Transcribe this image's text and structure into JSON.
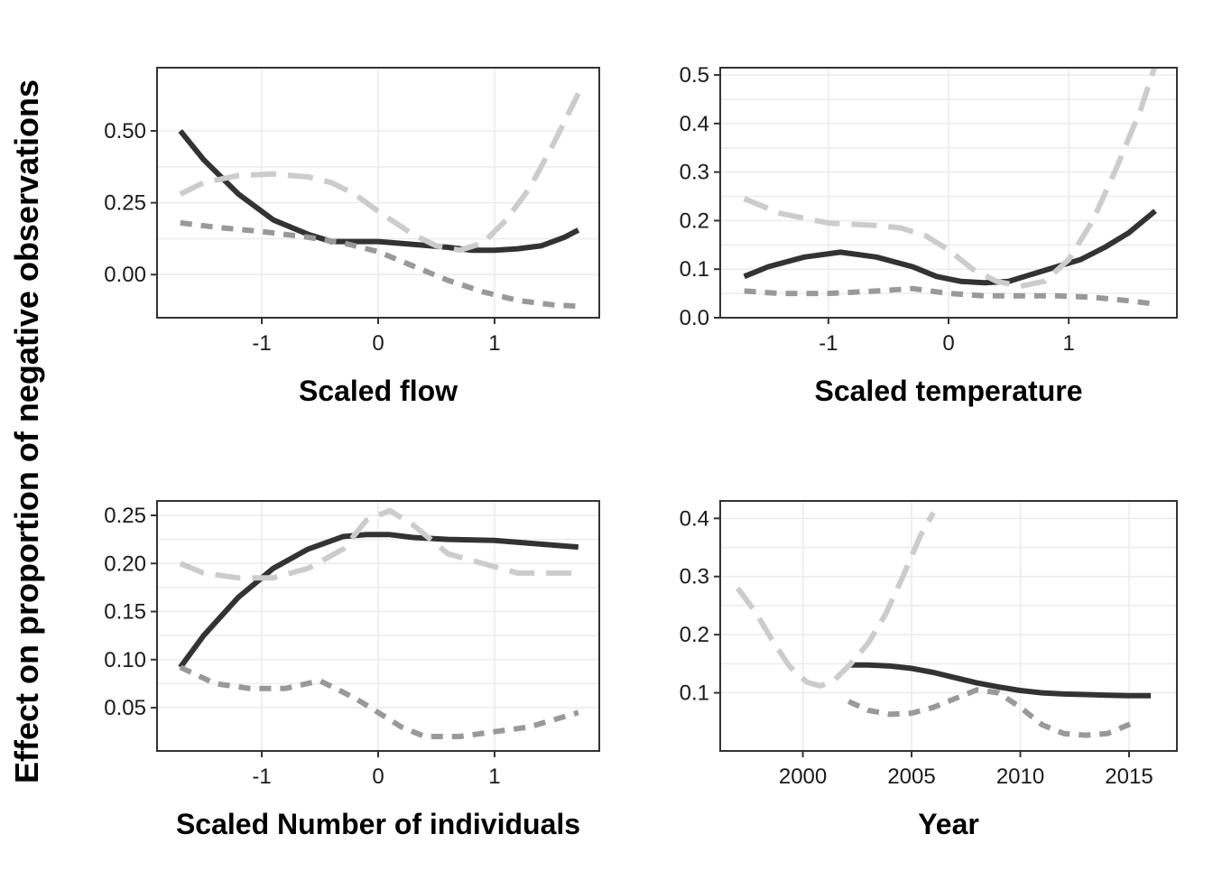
{
  "ylabel": "Effect on proportion of negative observations",
  "styles": {
    "series_a": {
      "color": "#333333",
      "dash": "solid"
    },
    "series_b": {
      "color": "#999999",
      "dash": "short-dash"
    },
    "series_c": {
      "color": "#cccccc",
      "dash": "long-dash"
    }
  },
  "chart_data": [
    {
      "type": "line",
      "xlabel": "Scaled flow",
      "xlim": [
        -1.9,
        1.9
      ],
      "ylim": [
        -0.15,
        0.72
      ],
      "xticks": [
        {
          "v": -1,
          "label": "-1"
        },
        {
          "v": 0,
          "label": "0"
        },
        {
          "v": 1,
          "label": "1"
        }
      ],
      "yticks": [
        {
          "v": 0,
          "label": "0.00"
        },
        {
          "v": 0.25,
          "label": "0.25"
        },
        {
          "v": 0.5,
          "label": "0.50"
        }
      ],
      "series": [
        {
          "style": "series_a",
          "x": [
            -1.7,
            -1.5,
            -1.2,
            -0.9,
            -0.6,
            -0.4,
            -0.2,
            0,
            0.3,
            0.6,
            0.8,
            1.0,
            1.2,
            1.4,
            1.6,
            1.72
          ],
          "y": [
            0.5,
            0.4,
            0.28,
            0.19,
            0.14,
            0.115,
            0.115,
            0.115,
            0.105,
            0.095,
            0.085,
            0.085,
            0.09,
            0.1,
            0.13,
            0.155
          ]
        },
        {
          "style": "series_b",
          "x": [
            -1.7,
            -1.4,
            -1.0,
            -0.6,
            -0.3,
            0,
            0.3,
            0.6,
            0.9,
            1.2,
            1.5,
            1.72
          ],
          "y": [
            0.18,
            0.165,
            0.15,
            0.13,
            0.11,
            0.08,
            0.03,
            -0.02,
            -0.06,
            -0.09,
            -0.105,
            -0.11
          ]
        },
        {
          "style": "series_c",
          "x": [
            -1.7,
            -1.5,
            -1.2,
            -0.9,
            -0.6,
            -0.4,
            -0.2,
            0,
            0.3,
            0.5,
            0.7,
            0.9,
            1.1,
            1.3,
            1.5,
            1.72
          ],
          "y": [
            0.28,
            0.32,
            0.345,
            0.35,
            0.34,
            0.32,
            0.28,
            0.22,
            0.14,
            0.1,
            0.085,
            0.11,
            0.19,
            0.3,
            0.45,
            0.63
          ]
        }
      ]
    },
    {
      "type": "line",
      "xlabel": "Scaled temperature",
      "xlim": [
        -1.9,
        1.9
      ],
      "ylim": [
        0,
        0.515
      ],
      "xticks": [
        {
          "v": -1,
          "label": "-1"
        },
        {
          "v": 0,
          "label": "0"
        },
        {
          "v": 1,
          "label": "1"
        }
      ],
      "yticks": [
        {
          "v": 0,
          "label": "0.0"
        },
        {
          "v": 0.1,
          "label": "0.1"
        },
        {
          "v": 0.2,
          "label": "0.2"
        },
        {
          "v": 0.3,
          "label": "0.3"
        },
        {
          "v": 0.4,
          "label": "0.4"
        },
        {
          "v": 0.5,
          "label": "0.5"
        }
      ],
      "series": [
        {
          "style": "series_a",
          "x": [
            -1.7,
            -1.5,
            -1.2,
            -0.9,
            -0.6,
            -0.3,
            -0.1,
            0.1,
            0.3,
            0.5,
            0.7,
            0.9,
            1.1,
            1.3,
            1.5,
            1.72
          ],
          "y": [
            0.085,
            0.105,
            0.125,
            0.135,
            0.125,
            0.105,
            0.085,
            0.075,
            0.072,
            0.075,
            0.09,
            0.105,
            0.12,
            0.145,
            0.175,
            0.22
          ]
        },
        {
          "style": "series_b",
          "x": [
            -1.7,
            -1.4,
            -1.0,
            -0.6,
            -0.3,
            0,
            0.3,
            0.6,
            0.9,
            1.2,
            1.5,
            1.72
          ],
          "y": [
            0.055,
            0.05,
            0.05,
            0.055,
            0.06,
            0.05,
            0.045,
            0.045,
            0.045,
            0.042,
            0.035,
            0.028
          ]
        },
        {
          "style": "series_c",
          "x": [
            -1.7,
            -1.4,
            -1.0,
            -0.6,
            -0.4,
            -0.2,
            0,
            0.2,
            0.4,
            0.6,
            0.8,
            1.0,
            1.2,
            1.4,
            1.6,
            1.72
          ],
          "y": [
            0.245,
            0.215,
            0.195,
            0.19,
            0.185,
            0.17,
            0.14,
            0.1,
            0.075,
            0.065,
            0.075,
            0.12,
            0.2,
            0.31,
            0.43,
            0.52
          ]
        }
      ]
    },
    {
      "type": "line",
      "xlabel": "Scaled Number of individuals",
      "xlim": [
        -1.9,
        1.9
      ],
      "ylim": [
        0.005,
        0.265
      ],
      "xticks": [
        {
          "v": -1,
          "label": "-1"
        },
        {
          "v": 0,
          "label": "0"
        },
        {
          "v": 1,
          "label": "1"
        }
      ],
      "yticks": [
        {
          "v": 0.05,
          "label": "0.05"
        },
        {
          "v": 0.1,
          "label": "0.10"
        },
        {
          "v": 0.15,
          "label": "0.15"
        },
        {
          "v": 0.2,
          "label": "0.20"
        },
        {
          "v": 0.25,
          "label": "0.25"
        }
      ],
      "series": [
        {
          "style": "series_a",
          "x": [
            -1.7,
            -1.5,
            -1.2,
            -0.9,
            -0.6,
            -0.3,
            -0.1,
            0.1,
            0.3,
            0.6,
            1.0,
            1.4,
            1.72
          ],
          "y": [
            0.092,
            0.125,
            0.165,
            0.195,
            0.215,
            0.228,
            0.23,
            0.23,
            0.227,
            0.225,
            0.224,
            0.22,
            0.217
          ]
        },
        {
          "style": "series_b",
          "x": [
            -1.7,
            -1.4,
            -1.1,
            -0.8,
            -0.5,
            -0.2,
            0,
            0.2,
            0.4,
            0.7,
            1.0,
            1.3,
            1.72
          ],
          "y": [
            0.092,
            0.075,
            0.07,
            0.07,
            0.078,
            0.06,
            0.045,
            0.03,
            0.02,
            0.02,
            0.025,
            0.03,
            0.045
          ]
        },
        {
          "style": "series_c",
          "x": [
            -1.7,
            -1.5,
            -1.2,
            -0.9,
            -0.6,
            -0.3,
            -0.1,
            0.1,
            0.3,
            0.6,
            0.9,
            1.2,
            1.5,
            1.72
          ],
          "y": [
            0.2,
            0.19,
            0.185,
            0.185,
            0.195,
            0.215,
            0.245,
            0.255,
            0.24,
            0.21,
            0.2,
            0.19,
            0.19,
            0.19
          ]
        }
      ]
    },
    {
      "type": "line",
      "xlabel": "Year",
      "xlim": [
        1996.2,
        2017.2
      ],
      "ylim": [
        0.0,
        0.43
      ],
      "xticks": [
        {
          "v": 2000,
          "label": "2000"
        },
        {
          "v": 2005,
          "label": "2005"
        },
        {
          "v": 2010,
          "label": "2010"
        },
        {
          "v": 2015,
          "label": "2015"
        }
      ],
      "yticks": [
        {
          "v": 0.1,
          "label": "0.1"
        },
        {
          "v": 0.2,
          "label": "0.2"
        },
        {
          "v": 0.3,
          "label": "0.3"
        },
        {
          "v": 0.4,
          "label": "0.4"
        }
      ],
      "series": [
        {
          "style": "series_a",
          "x": [
            2002.1,
            2003,
            2004,
            2005,
            2006,
            2007,
            2008,
            2009,
            2010,
            2011,
            2012,
            2013,
            2014,
            2015,
            2016
          ],
          "y": [
            0.148,
            0.148,
            0.146,
            0.142,
            0.135,
            0.126,
            0.117,
            0.11,
            0.104,
            0.1,
            0.098,
            0.097,
            0.096,
            0.095,
            0.095
          ]
        },
        {
          "style": "series_b",
          "x": [
            2002.1,
            2003,
            2004,
            2005,
            2006,
            2007,
            2008,
            2009,
            2010,
            2011,
            2012,
            2013,
            2014,
            2015.3
          ],
          "y": [
            0.085,
            0.07,
            0.063,
            0.065,
            0.075,
            0.09,
            0.105,
            0.1,
            0.075,
            0.045,
            0.03,
            0.027,
            0.03,
            0.05
          ]
        },
        {
          "style": "series_c",
          "x": [
            1997,
            1997.8,
            1998.6,
            1999.4,
            2000.2,
            2000.8,
            2001.4,
            2002.2,
            2003,
            2003.8,
            2004.6,
            2005.4,
            2006
          ],
          "y": [
            0.28,
            0.24,
            0.19,
            0.145,
            0.118,
            0.112,
            0.12,
            0.15,
            0.185,
            0.235,
            0.3,
            0.37,
            0.41
          ]
        }
      ]
    }
  ]
}
